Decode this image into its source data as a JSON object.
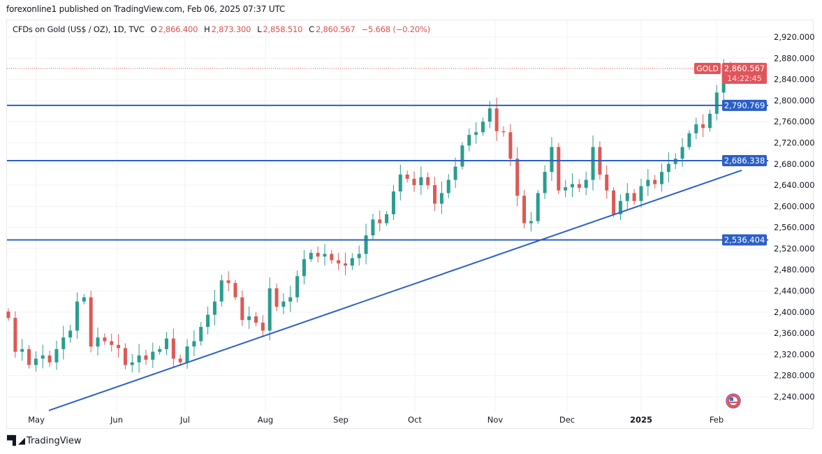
{
  "header": {
    "published": "forexonline1 published on TradingView.com, Feb 06, 2025 07:37 UTC"
  },
  "legend": {
    "symbol": "CFDs on Gold (US$ / OZ), 1D, TVC",
    "open_label": "O",
    "open": "2,866.400",
    "high_label": "H",
    "high": "2,873.300",
    "low_label": "L",
    "low": "2,858.510",
    "close_label": "C",
    "close": "2,860.567",
    "change": "−5.668 (−0.20%)"
  },
  "price_tag": {
    "symbol": "GOLD",
    "price": "2,860.567",
    "countdown": "14:22:45"
  },
  "footer": {
    "brand": "TradingView",
    "logo_icon": "tradingview-logo-icon"
  },
  "colors": {
    "up": "#2a9d8f",
    "down": "#db5a55",
    "lines": "#2b5fc7",
    "price_tag": "#e0555a"
  },
  "chart_data": {
    "type": "candlestick",
    "title": "CFDs on Gold (US$ / OZ), 1D, TVC",
    "x_ticks": [
      "May",
      "Jun",
      "Jul",
      "Aug",
      "Sep",
      "Oct",
      "Nov",
      "Dec",
      "2025",
      "Feb"
    ],
    "y_ticks": [
      "2,240.000",
      "2,280.000",
      "2,320.000",
      "2,360.000",
      "2,400.000",
      "2,440.000",
      "2,480.000",
      "2,520.000",
      "2,560.000",
      "2,600.000",
      "2,640.000",
      "2,680.000",
      "2,720.000",
      "2,760.000",
      "2,800.000",
      "2,840.000",
      "2,880.000",
      "2,920.000"
    ],
    "ylim": [
      2240,
      2920
    ],
    "grid": true,
    "last_candle": {
      "open": 2866.4,
      "high": 2873.3,
      "low": 2858.51,
      "close": 2860.567
    },
    "closes": [
      2389,
      2325,
      2330,
      2300,
      2312,
      2318,
      2305,
      2330,
      2352,
      2365,
      2420,
      2428,
      2335,
      2352,
      2345,
      2338,
      2332,
      2300,
      2305,
      2318,
      2310,
      2325,
      2330,
      2350,
      2312,
      2305,
      2335,
      2345,
      2372,
      2395,
      2420,
      2460,
      2455,
      2428,
      2385,
      2392,
      2380,
      2365,
      2445,
      2410,
      2420,
      2428,
      2468,
      2500,
      2512,
      2505,
      2510,
      2498,
      2492,
      2488,
      2502,
      2510,
      2545,
      2575,
      2568,
      2585,
      2628,
      2660,
      2652,
      2640,
      2655,
      2640,
      2605,
      2625,
      2650,
      2675,
      2715,
      2735,
      2740,
      2760,
      2785,
      2742,
      2740,
      2690,
      2620,
      2568,
      2572,
      2625,
      2665,
      2712,
      2630,
      2636,
      2642,
      2635,
      2650,
      2712,
      2660,
      2630,
      2585,
      2610,
      2625,
      2610,
      2638,
      2650,
      2642,
      2665,
      2680,
      2690,
      2712,
      2738,
      2755,
      2748,
      2775,
      2815,
      2858,
      2860.567
    ],
    "horizontal_lines": [
      {
        "price": 2790.769,
        "label": "2,790.769"
      },
      {
        "price": 2686.338,
        "label": "2,686.338"
      },
      {
        "price": 2536.404,
        "label": "2,536.404"
      }
    ],
    "trendline": [
      {
        "date": "May",
        "price": 2214
      },
      {
        "date": "Feb",
        "price": 2668
      }
    ],
    "last_price_line": 2860.567
  }
}
